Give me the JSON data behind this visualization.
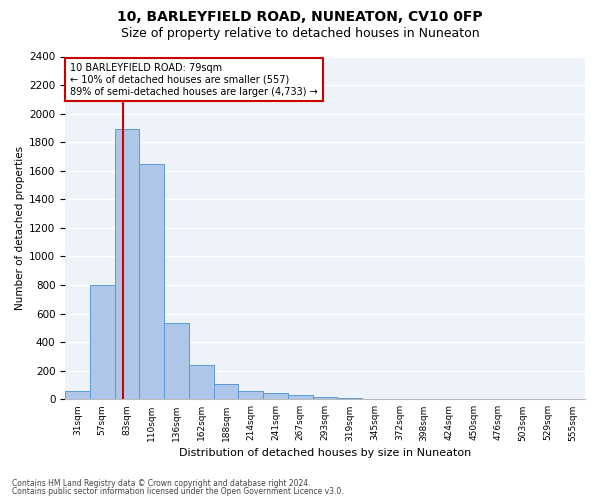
{
  "title": "10, BARLEYFIELD ROAD, NUNEATON, CV10 0FP",
  "subtitle": "Size of property relative to detached houses in Nuneaton",
  "xlabel": "Distribution of detached houses by size in Nuneaton",
  "ylabel": "Number of detached properties",
  "bar_labels": [
    "31sqm",
    "57sqm",
    "83sqm",
    "110sqm",
    "136sqm",
    "162sqm",
    "188sqm",
    "214sqm",
    "241sqm",
    "267sqm",
    "293sqm",
    "319sqm",
    "345sqm",
    "372sqm",
    "398sqm",
    "424sqm",
    "450sqm",
    "476sqm",
    "503sqm",
    "529sqm",
    "555sqm"
  ],
  "bar_values": [
    60,
    800,
    1890,
    1650,
    535,
    240,
    110,
    60,
    45,
    30,
    15,
    8,
    4,
    2,
    1,
    0,
    0,
    0,
    0,
    0,
    0
  ],
  "bar_color": "#aec6e8",
  "bar_edge_color": "#5b9bd5",
  "annotation_text": "10 BARLEYFIELD ROAD: 79sqm\n← 10% of detached houses are smaller (557)\n89% of semi-detached houses are larger (4,733) →",
  "ylim": [
    0,
    2400
  ],
  "yticks": [
    0,
    200,
    400,
    600,
    800,
    1000,
    1200,
    1400,
    1600,
    1800,
    2000,
    2200,
    2400
  ],
  "footer_line1": "Contains HM Land Registry data © Crown copyright and database right 2024.",
  "footer_line2": "Contains public sector information licensed under the Open Government Licence v3.0.",
  "background_color": "#eef2f9",
  "grid_color": "#ffffff",
  "title_fontsize": 10,
  "subtitle_fontsize": 9,
  "annotation_box_color": "#cc0000",
  "red_line_color": "#cc0000",
  "red_line_x": 1.85
}
